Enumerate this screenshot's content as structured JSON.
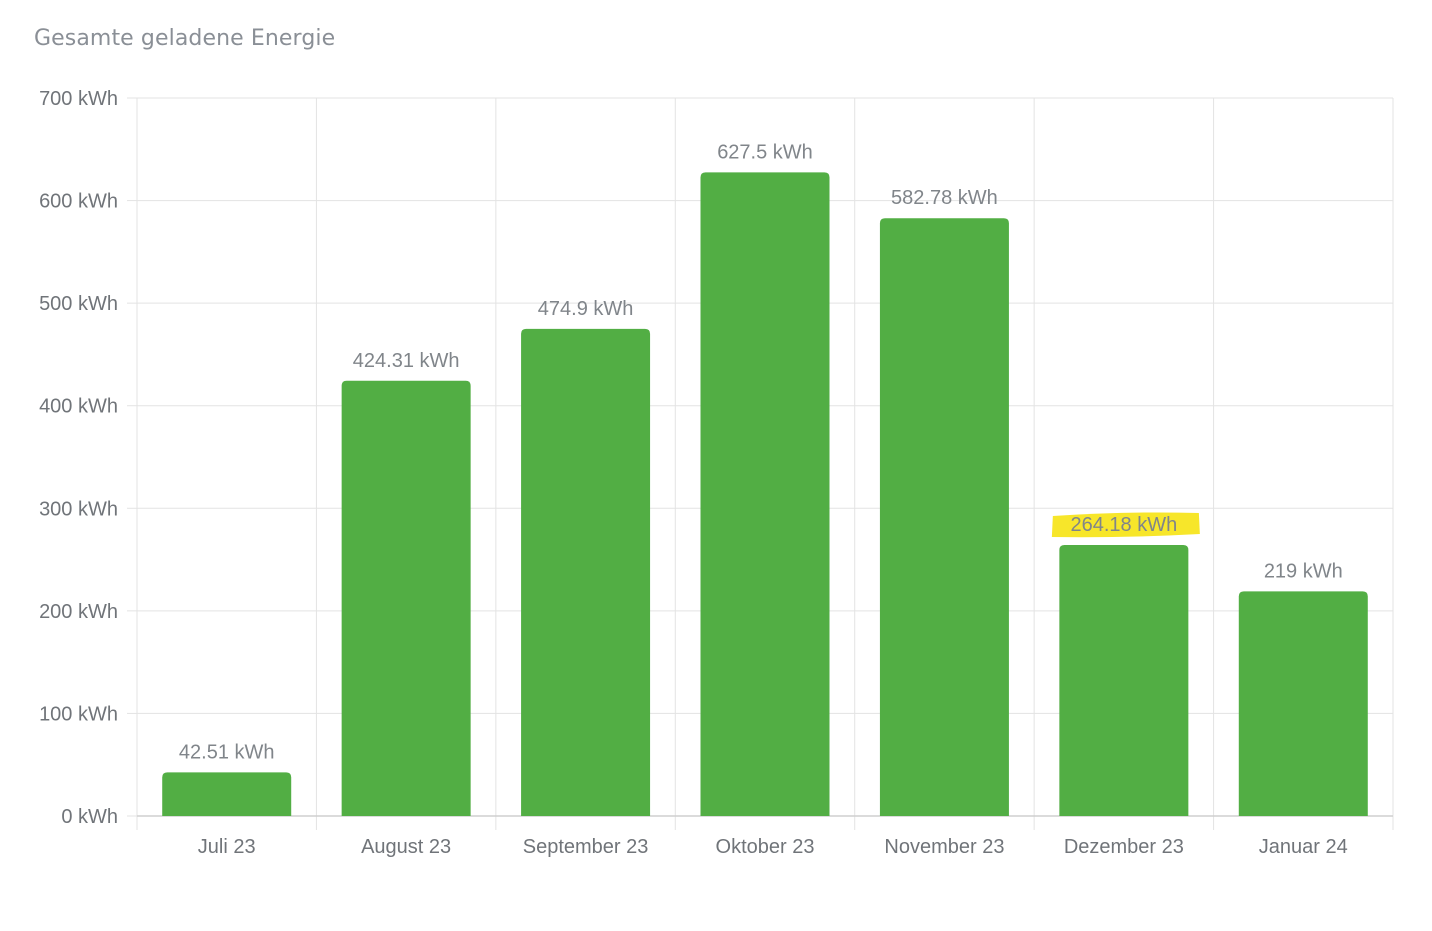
{
  "title": "Gesamte geladene Energie",
  "chart_data": {
    "type": "bar",
    "title": "Gesamte geladene Energie",
    "unit": "kWh",
    "categories": [
      "Juli 23",
      "August 23",
      "September 23",
      "Oktober 23",
      "November 23",
      "Dezember 23",
      "Januar 24"
    ],
    "values": [
      42.51,
      424.31,
      474.9,
      627.5,
      582.78,
      264.18,
      219
    ],
    "value_labels": [
      "42.51 kWh",
      "424.31 kWh",
      "474.9 kWh",
      "627.5 kWh",
      "582.78 kWh",
      "264.18 kWh",
      "219 kWh"
    ],
    "ylim": [
      0,
      700
    ],
    "yticks": [
      0,
      100,
      200,
      300,
      400,
      500,
      600,
      700
    ],
    "ytick_labels": [
      "0 kWh",
      "100 kWh",
      "200 kWh",
      "300 kWh",
      "400 kWh",
      "500 kWh",
      "600 kWh",
      "700 kWh"
    ],
    "grid": true,
    "bar_color": "#52ae44",
    "highlighted_label_index": 5,
    "highlight_color": "#f7e62a"
  }
}
